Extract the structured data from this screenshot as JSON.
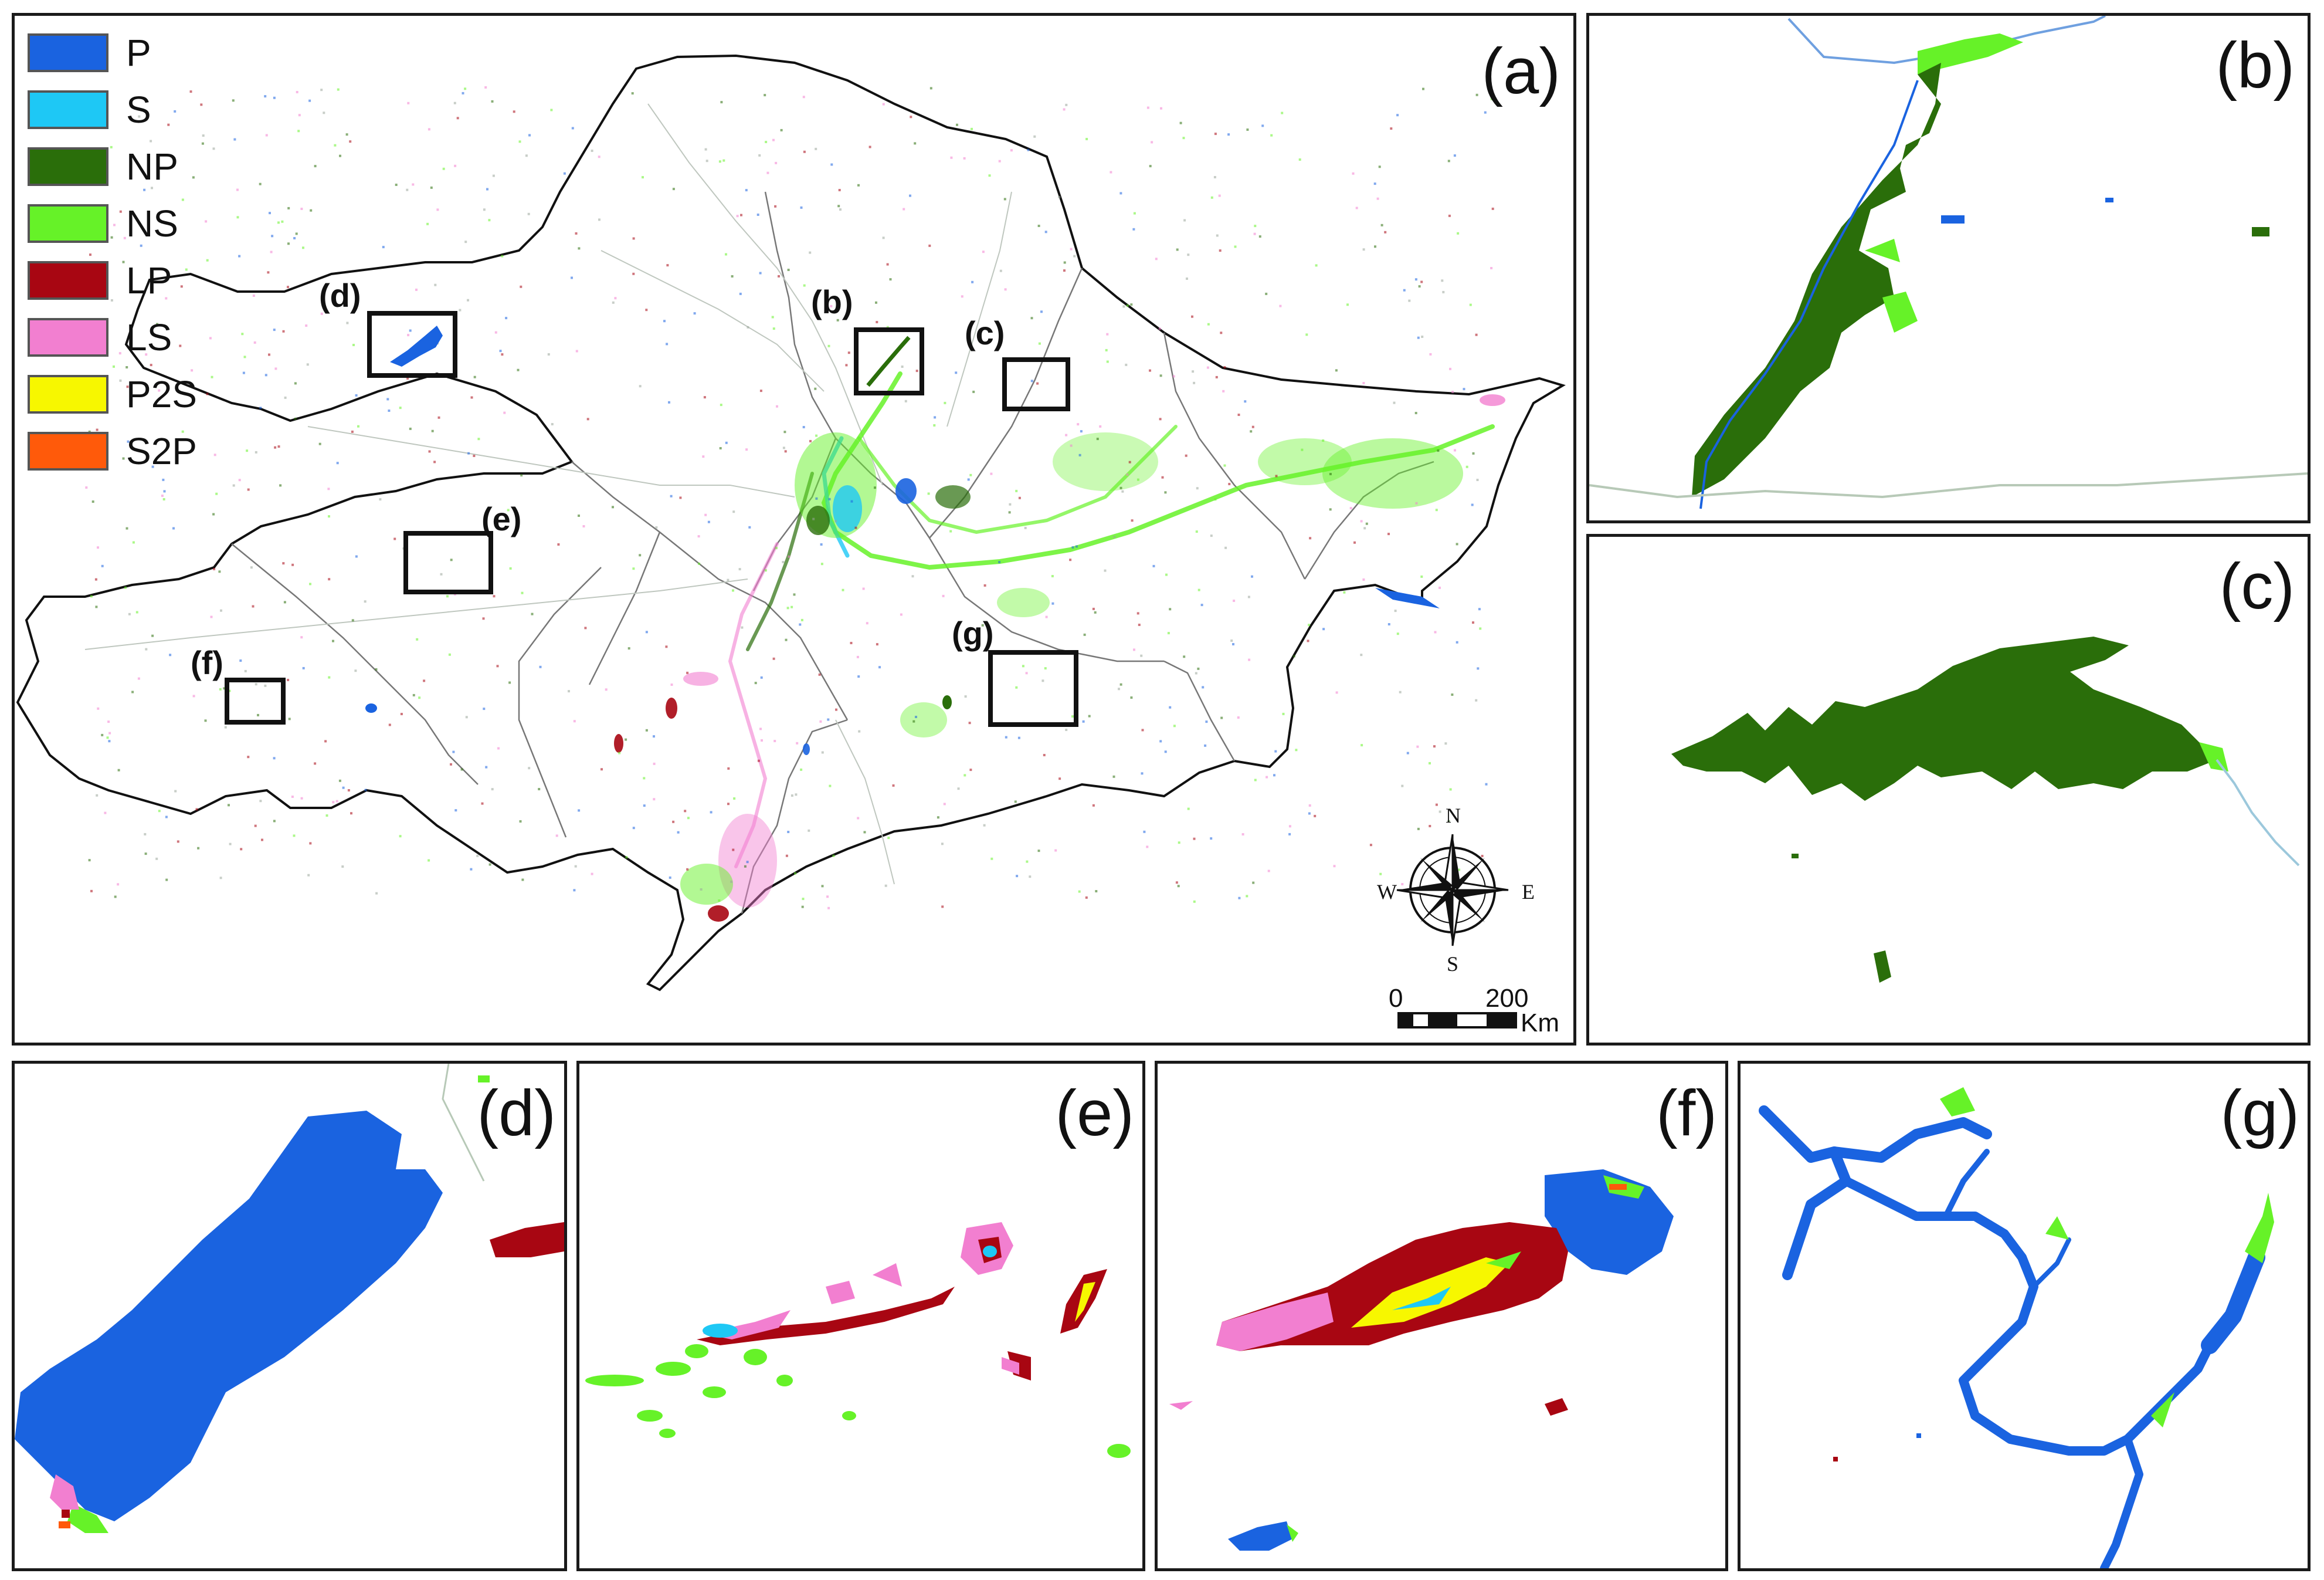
{
  "legend": [
    {
      "code": "P",
      "color": "#1a63e0"
    },
    {
      "code": "S",
      "color": "#1ec8f5"
    },
    {
      "code": "NP",
      "color": "#2a6e0a"
    },
    {
      "code": "NS",
      "color": "#66f228"
    },
    {
      "code": "LP",
      "color": "#a80612"
    },
    {
      "code": "LS",
      "color": "#f27fd0"
    },
    {
      "code": "P2S",
      "color": "#f7f700"
    },
    {
      "code": "S2P",
      "color": "#ff5a0a"
    }
  ],
  "panels": {
    "a": "(a)",
    "b": "(b)",
    "c": "(c)",
    "d": "(d)",
    "e": "(e)",
    "f": "(f)",
    "g": "(g)"
  },
  "inset_markers": {
    "b": "(b)",
    "c": "(c)",
    "d": "(d)",
    "e": "(e)",
    "f": "(f)",
    "g": "(g)"
  },
  "compass": {
    "n": "N",
    "s": "S",
    "e": "E",
    "w": "W"
  },
  "scale_bar": {
    "start": "0",
    "end": "200",
    "unit": "Km"
  },
  "colors": {
    "border": "#1a1a1a",
    "boundary": "#555555",
    "accent_blue": "#1a63e0",
    "accent_darkgreen": "#2a6e0a",
    "accent_green": "#66f228"
  }
}
